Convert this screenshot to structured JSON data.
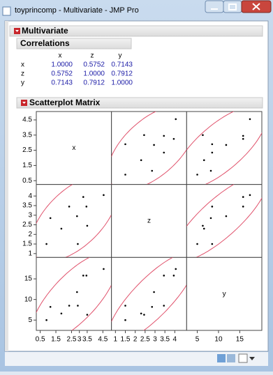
{
  "window": {
    "title": "toyprincomp - Multivariate - JMP Pro"
  },
  "report": {
    "title": "Multivariate",
    "correlations": {
      "title": "Correlations",
      "columns": [
        "x",
        "z",
        "y"
      ],
      "rows": [
        {
          "label": "x",
          "values": [
            "1.0000",
            "0.5752",
            "0.7143"
          ]
        },
        {
          "label": "z",
          "values": [
            "0.5752",
            "1.0000",
            "0.7912"
          ]
        },
        {
          "label": "y",
          "values": [
            "0.7143",
            "0.7912",
            "1.0000"
          ]
        }
      ]
    },
    "scatterplot_matrix": {
      "title": "Scatterplot Matrix",
      "variables": [
        {
          "name": "x",
          "values": [
            0.9,
            1.15,
            1.85,
            2.35,
            2.85,
            2.9,
            3.25,
            3.45,
            3.5,
            4.55
          ],
          "lim": [
            0.25,
            5.05
          ],
          "left_ticks": [
            0.5,
            1.5,
            2.5,
            3.5,
            4.5
          ],
          "bottom_ticks": [
            0.5,
            1.5,
            2.5,
            3,
            3.5,
            4.5
          ]
        },
        {
          "name": "z",
          "values": [
            1.5,
            2.85,
            2.3,
            3.45,
            2.95,
            1.5,
            3.95,
            3.45,
            2.45,
            4.05
          ],
          "lim": [
            0.8,
            4.6
          ],
          "left_ticks": [
            1,
            1.5,
            2,
            2.5,
            3,
            3.5,
            4
          ],
          "bottom_ticks": [
            1,
            1.5,
            2,
            2.5,
            3,
            3.5,
            4
          ]
        },
        {
          "name": "y",
          "values": [
            5,
            8.2,
            6.6,
            8.5,
            11.8,
            8.5,
            15.8,
            15.8,
            6.3,
            17.4
          ],
          "lim": [
            2.5,
            20.2
          ],
          "left_ticks": [
            5,
            10,
            15
          ],
          "bottom_ticks": [
            5,
            10,
            15
          ]
        }
      ]
    }
  }
}
